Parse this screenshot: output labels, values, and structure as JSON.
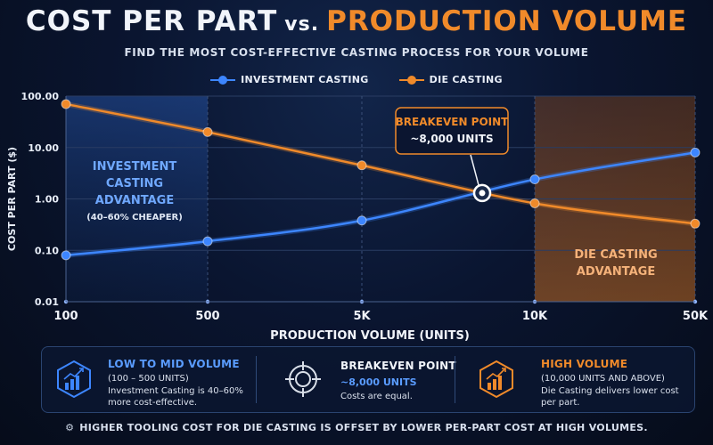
{
  "title": {
    "part1": "COST PER PART",
    "vs": "vs.",
    "part2": "PRODUCTION VOLUME"
  },
  "subtitle": "FIND THE MOST COST-EFFECTIVE CASTING PROCESS FOR YOUR VOLUME",
  "colors": {
    "investment": "#3d86ff",
    "die": "#f08a2a"
  },
  "chart_data": {
    "type": "line",
    "xlabel": "PRODUCTION VOLUME (UNITS)",
    "ylabel": "COST PER PART ($)",
    "x_categories": [
      "100",
      "500",
      "5K",
      "10K",
      "50K"
    ],
    "y_scale": "log",
    "ylim": [
      0.01,
      100
    ],
    "y_ticks": [
      "100.00",
      "10.00",
      "1.00",
      "0.10",
      "0.01"
    ],
    "grid": true,
    "series": [
      {
        "name": "INVESTMENT CASTING",
        "values": [
          0.08,
          0.15,
          0.38,
          2.4,
          8
        ]
      },
      {
        "name": "DIE CASTING",
        "values": [
          70,
          20,
          4.5,
          0.82,
          0.33
        ]
      }
    ],
    "annotations": {
      "breakeven": {
        "title": "BREAKEVEN POINT",
        "label": "~8,000 UNITS",
        "y": 1.3
      },
      "investment_region": {
        "lines": [
          "INVESTMENT",
          "CASTING",
          "ADVANTAGE"
        ],
        "note": "(40–60% CHEAPER)"
      },
      "die_region": {
        "lines": [
          "DIE CASTING",
          "ADVANTAGE"
        ]
      }
    }
  },
  "panels": {
    "low": {
      "title": "LOW TO MID VOLUME",
      "sub": "(100 – 500 UNITS)",
      "body": "Investment Casting is 40–60% more cost-effective.",
      "icon": "bar-chart-icon"
    },
    "breakeven": {
      "title": "BREAKEVEN POINT",
      "sub": "~8,000 UNITS",
      "body": "Costs are equal.",
      "icon": "crosshair-icon"
    },
    "high": {
      "title": "HIGH VOLUME",
      "sub": "(10,000 UNITS AND ABOVE)",
      "body": "Die Casting delivers lower cost per part.",
      "icon": "bar-chart-icon"
    }
  },
  "footer": "HIGHER TOOLING COST FOR DIE CASTING IS OFFSET BY LOWER PER-PART COST AT HIGH VOLUMES."
}
